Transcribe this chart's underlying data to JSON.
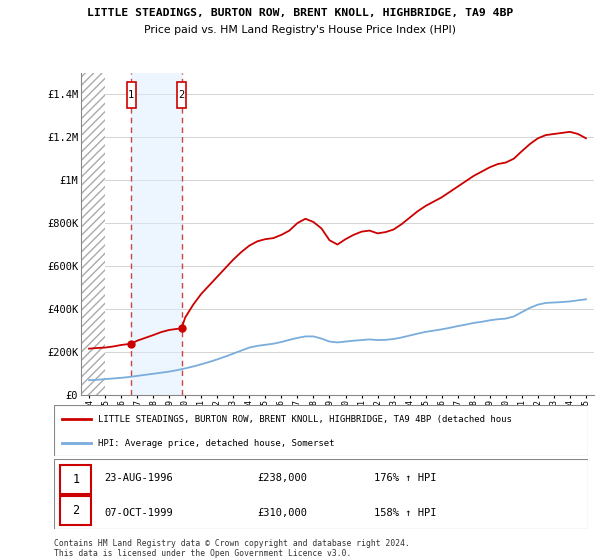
{
  "title1": "LITTLE STEADINGS, BURTON ROW, BRENT KNOLL, HIGHBRIDGE, TA9 4BP",
  "title2": "Price paid vs. HM Land Registry's House Price Index (HPI)",
  "ylabel_ticks": [
    "£0",
    "£200K",
    "£400K",
    "£600K",
    "£800K",
    "£1M",
    "£1.2M",
    "£1.4M"
  ],
  "ylabel_vals": [
    0,
    200000,
    400000,
    600000,
    800000,
    1000000,
    1200000,
    1400000
  ],
  "ylim": [
    0,
    1500000
  ],
  "xlim": [
    1993.5,
    2025.5
  ],
  "legend_line1": "LITTLE STEADINGS, BURTON ROW, BRENT KNOLL, HIGHBRIDGE, TA9 4BP (detached hous",
  "legend_line2": "HPI: Average price, detached house, Somerset",
  "point1_date": "23-AUG-1996",
  "point1_price": "£238,000",
  "point1_hpi": "176% ↑ HPI",
  "point1_x": 1996.64,
  "point1_y": 238000,
  "point2_date": "07-OCT-1999",
  "point2_price": "£310,000",
  "point2_hpi": "158% ↑ HPI",
  "point2_x": 1999.77,
  "point2_y": 310000,
  "red_color": "#cc0000",
  "blue_color": "#7aaddc",
  "footer": "Contains HM Land Registry data © Crown copyright and database right 2024.\nThis data is licensed under the Open Government Licence v3.0.",
  "hpi_x": [
    1994.0,
    1994.5,
    1995.0,
    1995.5,
    1996.0,
    1996.5,
    1997.0,
    1997.5,
    1998.0,
    1998.5,
    1999.0,
    1999.5,
    2000.0,
    2000.5,
    2001.0,
    2001.5,
    2002.0,
    2002.5,
    2003.0,
    2003.5,
    2004.0,
    2004.5,
    2005.0,
    2005.5,
    2006.0,
    2006.5,
    2007.0,
    2007.5,
    2008.0,
    2008.5,
    2009.0,
    2009.5,
    2010.0,
    2010.5,
    2011.0,
    2011.5,
    2012.0,
    2012.5,
    2013.0,
    2013.5,
    2014.0,
    2014.5,
    2015.0,
    2015.5,
    2016.0,
    2016.5,
    2017.0,
    2017.5,
    2018.0,
    2018.5,
    2019.0,
    2019.5,
    2020.0,
    2020.5,
    2021.0,
    2021.5,
    2022.0,
    2022.5,
    2023.0,
    2023.5,
    2024.0,
    2024.5,
    2025.0
  ],
  "hpi_y": [
    68000,
    70000,
    73000,
    76000,
    79000,
    83000,
    88000,
    93000,
    98000,
    103000,
    108000,
    115000,
    123000,
    132000,
    142000,
    153000,
    165000,
    178000,
    192000,
    206000,
    220000,
    228000,
    233000,
    238000,
    246000,
    256000,
    265000,
    272000,
    272000,
    262000,
    248000,
    244000,
    248000,
    252000,
    255000,
    258000,
    255000,
    256000,
    260000,
    267000,
    276000,
    285000,
    293000,
    299000,
    305000,
    312000,
    320000,
    327000,
    335000,
    340000,
    347000,
    352000,
    355000,
    365000,
    385000,
    405000,
    420000,
    428000,
    430000,
    432000,
    435000,
    440000,
    445000
  ],
  "red_x": [
    1994.0,
    1994.5,
    1995.0,
    1995.5,
    1996.0,
    1996.64,
    1997.0,
    1997.5,
    1998.0,
    1998.5,
    1999.0,
    1999.77,
    2000.0,
    2000.5,
    2001.0,
    2001.5,
    2002.0,
    2002.5,
    2003.0,
    2003.5,
    2004.0,
    2004.5,
    2005.0,
    2005.5,
    2006.0,
    2006.5,
    2007.0,
    2007.5,
    2008.0,
    2008.5,
    2009.0,
    2009.5,
    2010.0,
    2010.5,
    2011.0,
    2011.5,
    2012.0,
    2012.5,
    2013.0,
    2013.5,
    2014.0,
    2014.5,
    2015.0,
    2015.5,
    2016.0,
    2016.5,
    2017.0,
    2017.5,
    2018.0,
    2018.5,
    2019.0,
    2019.5,
    2020.0,
    2020.5,
    2021.0,
    2021.5,
    2022.0,
    2022.5,
    2023.0,
    2023.5,
    2024.0,
    2024.5,
    2025.0
  ],
  "red_y": [
    215000,
    218000,
    220000,
    225000,
    232000,
    238000,
    252000,
    265000,
    278000,
    292000,
    302000,
    310000,
    360000,
    420000,
    470000,
    510000,
    550000,
    590000,
    630000,
    665000,
    695000,
    715000,
    725000,
    730000,
    745000,
    765000,
    800000,
    820000,
    805000,
    775000,
    720000,
    700000,
    725000,
    745000,
    760000,
    765000,
    752000,
    758000,
    770000,
    795000,
    825000,
    855000,
    880000,
    900000,
    920000,
    945000,
    970000,
    995000,
    1020000,
    1040000,
    1060000,
    1075000,
    1082000,
    1100000,
    1135000,
    1168000,
    1195000,
    1210000,
    1215000,
    1220000,
    1225000,
    1215000,
    1195000
  ]
}
